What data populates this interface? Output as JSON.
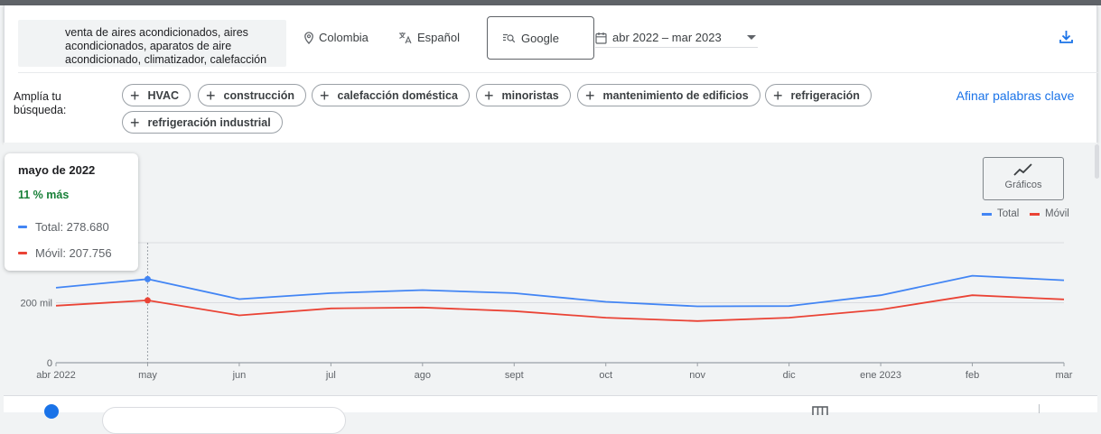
{
  "header": {
    "keywords": "venta de aires acondicionados, aires acondicionados, aparatos de aire acondicionado, climatizador, calefacción",
    "location": "Colombia",
    "language": "Español",
    "engine": "Google",
    "date_range": "abr 2022 – mar 2023"
  },
  "broaden": {
    "label": "Amplía tu búsqueda:",
    "chips": [
      "HVAC",
      "construcción",
      "calefacción doméstica",
      "minoristas",
      "mantenimiento de edificios",
      "refrigeración",
      "refrigeración industrial"
    ],
    "refine_label": "Afinar palabras clave"
  },
  "tooltip": {
    "title": "mayo de 2022",
    "change": "11 % más",
    "total": "Total: 278.680",
    "mobile": "Móvil: 207.756"
  },
  "chart_controls": {
    "button_label": "Gráficos",
    "legend_total": "Total",
    "legend_mobile": "Móvil"
  },
  "colors": {
    "total": "#4285f4",
    "mobile": "#ea4335",
    "accent": "#1a73e8"
  },
  "icons": [
    "location-pin-icon",
    "translate-icon",
    "search-engine-icon",
    "calendar-icon",
    "download-icon",
    "trend-chart-icon",
    "plus-icon",
    "table-columns-icon"
  ],
  "chart_data": {
    "type": "line",
    "categories": [
      "abr 2022",
      "may",
      "jun",
      "jul",
      "ago",
      "sept",
      "oct",
      "nov",
      "dic",
      "ene 2023",
      "feb",
      "mar"
    ],
    "series": [
      {
        "name": "Total",
        "values": [
          250000,
          278680,
          212000,
          232000,
          242000,
          232000,
          203000,
          188000,
          189000,
          225000,
          290000,
          275000
        ]
      },
      {
        "name": "Móvil",
        "values": [
          190000,
          207756,
          158000,
          181000,
          184000,
          172000,
          150000,
          139000,
          150000,
          177000,
          225000,
          211000
        ]
      }
    ],
    "yticks": [
      0,
      200000
    ],
    "ytick_labels": [
      "0",
      "200 mil"
    ],
    "ylim": [
      0,
      400000
    ],
    "highlight_index": 1,
    "grid": true,
    "legend": "top-right"
  }
}
